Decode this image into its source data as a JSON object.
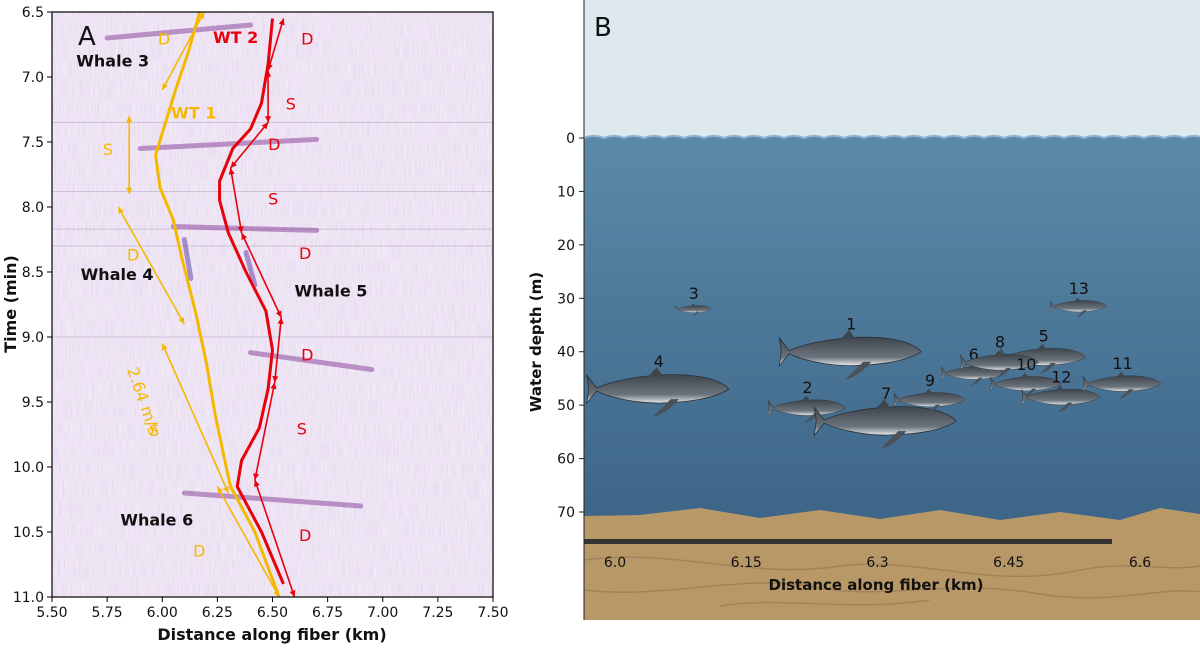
{
  "chart_data": [
    {
      "panel": "A",
      "type": "heatmap",
      "panel_label": "A",
      "xlabel": "Distance along fiber (km)",
      "ylabel": "Time (min)",
      "xlim": [
        5.5,
        7.5
      ],
      "ylim": [
        11.0,
        6.5
      ],
      "xticks": [
        "5.50",
        "5.75",
        "6.00",
        "6.25",
        "6.50",
        "6.75",
        "7.00",
        "7.25",
        "7.50"
      ],
      "yticks": [
        "6.5",
        "7.0",
        "7.5",
        "8.0",
        "8.5",
        "9.0",
        "9.5",
        "10.0",
        "10.5",
        "11.0"
      ],
      "colors": {
        "wt1": "#f5b800",
        "wt2": "#e8000b",
        "labels_black": "#111111"
      },
      "tracks": [
        {
          "label": "WT 1",
          "color": "#f5b800",
          "points": [
            [
              6.17,
              6.5
            ],
            [
              6.12,
              6.8
            ],
            [
              6.06,
              7.1
            ],
            [
              5.97,
              7.6
            ],
            [
              5.99,
              7.85
            ],
            [
              6.05,
              8.1
            ],
            [
              6.09,
              8.4
            ],
            [
              6.15,
              8.8
            ],
            [
              6.2,
              9.2
            ],
            [
              6.24,
              9.6
            ],
            [
              6.29,
              10.0
            ],
            [
              6.31,
              10.15
            ],
            [
              6.42,
              10.5
            ],
            [
              6.53,
              11.0
            ]
          ]
        },
        {
          "label": "WT 2",
          "color": "#e8000b",
          "points": [
            [
              6.5,
              6.55
            ],
            [
              6.48,
              6.9
            ],
            [
              6.45,
              7.2
            ],
            [
              6.4,
              7.4
            ],
            [
              6.32,
              7.55
            ],
            [
              6.26,
              7.8
            ],
            [
              6.26,
              7.95
            ],
            [
              6.3,
              8.2
            ],
            [
              6.38,
              8.5
            ],
            [
              6.47,
              8.8
            ],
            [
              6.5,
              9.1
            ],
            [
              6.48,
              9.4
            ],
            [
              6.44,
              9.7
            ],
            [
              6.36,
              9.95
            ],
            [
              6.34,
              10.15
            ],
            [
              6.45,
              10.5
            ],
            [
              6.55,
              10.9
            ]
          ]
        }
      ],
      "whales": [
        {
          "label": "Whale 3",
          "x": 5.61,
          "y": 6.92
        },
        {
          "label": "Whale 4",
          "x": 5.63,
          "y": 8.56
        },
        {
          "label": "Whale 5",
          "x": 6.6,
          "y": 8.69
        },
        {
          "label": "Whale 6",
          "x": 5.81,
          "y": 10.45
        }
      ],
      "track_labels": [
        {
          "label": "WT 1",
          "x": 6.04,
          "y": 7.32,
          "color": "#f5b800"
        },
        {
          "label": "WT 2",
          "x": 6.23,
          "y": 6.74,
          "color": "#e8000b"
        }
      ],
      "speed_label": {
        "text": "2.64 m/s",
        "x": 5.84,
        "y": 9.25,
        "color": "#f5b800"
      },
      "annotations": [
        {
          "text": "D",
          "x": 5.98,
          "y": 6.75,
          "color": "#f5b800"
        },
        {
          "text": "S",
          "x": 5.73,
          "y": 7.6,
          "color": "#f5b800"
        },
        {
          "text": "D",
          "x": 5.84,
          "y": 8.41,
          "color": "#f5b800"
        },
        {
          "text": "S",
          "x": 5.94,
          "y": 9.76,
          "color": "#f5b800"
        },
        {
          "text": "D",
          "x": 6.14,
          "y": 10.69,
          "color": "#f5b800"
        },
        {
          "text": "D",
          "x": 6.63,
          "y": 6.75,
          "color": "#e8000b"
        },
        {
          "text": "S",
          "x": 6.56,
          "y": 7.25,
          "color": "#e8000b"
        },
        {
          "text": "D",
          "x": 6.48,
          "y": 7.56,
          "color": "#e8000b"
        },
        {
          "text": "S",
          "x": 6.48,
          "y": 7.98,
          "color": "#e8000b"
        },
        {
          "text": "D",
          "x": 6.62,
          "y": 8.4,
          "color": "#e8000b"
        },
        {
          "text": "D",
          "x": 6.63,
          "y": 9.18,
          "color": "#e8000b"
        },
        {
          "text": "S",
          "x": 6.61,
          "y": 9.75,
          "color": "#e8000b"
        },
        {
          "text": "D",
          "x": 6.62,
          "y": 10.57,
          "color": "#e8000b"
        }
      ],
      "arrows": [
        {
          "x1": 6.19,
          "y1": 6.5,
          "x2": 6.0,
          "y2": 7.1,
          "color": "#f5b800"
        },
        {
          "x1": 5.85,
          "y1": 7.3,
          "x2": 5.85,
          "y2": 7.9,
          "color": "#f5b800"
        },
        {
          "x1": 5.8,
          "y1": 8.0,
          "x2": 6.1,
          "y2": 8.9,
          "color": "#f5b800"
        },
        {
          "x1": 6.0,
          "y1": 9.05,
          "x2": 6.3,
          "y2": 10.2,
          "color": "#f5b800"
        },
        {
          "x1": 6.25,
          "y1": 10.15,
          "x2": 6.53,
          "y2": 11.0,
          "color": "#f5b800"
        },
        {
          "x1": 6.55,
          "y1": 6.55,
          "x2": 6.48,
          "y2": 6.95,
          "color": "#e8000b"
        },
        {
          "x1": 6.48,
          "y1": 6.95,
          "x2": 6.48,
          "y2": 7.35,
          "color": "#e8000b"
        },
        {
          "x1": 6.48,
          "y1": 7.35,
          "x2": 6.31,
          "y2": 7.7,
          "color": "#e8000b"
        },
        {
          "x1": 6.31,
          "y1": 7.7,
          "x2": 6.36,
          "y2": 8.2,
          "color": "#e8000b"
        },
        {
          "x1": 6.36,
          "y1": 8.2,
          "x2": 6.54,
          "y2": 8.85,
          "color": "#e8000b"
        },
        {
          "x1": 6.54,
          "y1": 8.85,
          "x2": 6.51,
          "y2": 9.35,
          "color": "#e8000b"
        },
        {
          "x1": 6.51,
          "y1": 9.35,
          "x2": 6.42,
          "y2": 10.1,
          "color": "#e8000b"
        },
        {
          "x1": 6.42,
          "y1": 10.1,
          "x2": 6.6,
          "y2": 11.0,
          "color": "#e8000b"
        }
      ],
      "call_streaks": [
        {
          "x1": 5.75,
          "y1": 6.7,
          "x2": 6.4,
          "y2": 6.6,
          "color": "#7a2a8c"
        },
        {
          "x1": 5.9,
          "y1": 7.55,
          "x2": 6.7,
          "y2": 7.48,
          "color": "#7a2a8c"
        },
        {
          "x1": 6.05,
          "y1": 8.15,
          "x2": 6.7,
          "y2": 8.18,
          "color": "#7a2a8c"
        },
        {
          "x1": 6.1,
          "y1": 8.25,
          "x2": 6.13,
          "y2": 8.55,
          "color": "#4a2a9c"
        },
        {
          "x1": 6.38,
          "y1": 8.35,
          "x2": 6.42,
          "y2": 8.6,
          "color": "#4a2a9c"
        },
        {
          "x1": 6.4,
          "y1": 9.12,
          "x2": 6.95,
          "y2": 9.25,
          "color": "#7a2a8c"
        },
        {
          "x1": 6.1,
          "y1": 10.2,
          "x2": 6.9,
          "y2": 10.3,
          "color": "#7a2a8c"
        }
      ]
    },
    {
      "panel": "B",
      "type": "scatter",
      "panel_label": "B",
      "xlabel": "Distance along fiber (km)",
      "ylabel": "Water depth (m)",
      "xticks": [
        "6.0",
        "6.15",
        "6.3",
        "6.45",
        "6.6"
      ],
      "yticks": [
        "0",
        "10",
        "20",
        "30",
        "40",
        "50",
        "60",
        "70"
      ],
      "xlim": [
        5.95,
        6.67
      ],
      "ylim": [
        0,
        70
      ],
      "colors": {
        "sky": "#dde8ef",
        "water_top": "#5b8aa8",
        "water_bottom": "#3c6487",
        "seabed": "#b99868",
        "whale": "#5a6068",
        "fiber": "#333333"
      },
      "whales": [
        {
          "label": "1",
          "x": 6.27,
          "y": 40,
          "size": 1.0
        },
        {
          "label": "2",
          "x": 6.22,
          "y": 50.5,
          "size": 0.55
        },
        {
          "label": "3",
          "x": 6.09,
          "y": 32,
          "size": 0.25
        },
        {
          "label": "4",
          "x": 6.05,
          "y": 47,
          "size": 1.0
        },
        {
          "label": "5",
          "x": 6.49,
          "y": 41,
          "size": 0.6
        },
        {
          "label": "6",
          "x": 6.41,
          "y": 44,
          "size": 0.45
        },
        {
          "label": "7",
          "x": 6.31,
          "y": 53,
          "size": 1.0
        },
        {
          "label": "8",
          "x": 6.44,
          "y": 42,
          "size": 0.55
        },
        {
          "label": "9",
          "x": 6.36,
          "y": 49,
          "size": 0.5
        },
        {
          "label": "10",
          "x": 6.47,
          "y": 46,
          "size": 0.5
        },
        {
          "label": "11",
          "x": 6.58,
          "y": 46,
          "size": 0.55
        },
        {
          "label": "12",
          "x": 6.51,
          "y": 48.5,
          "size": 0.55
        },
        {
          "label": "13",
          "x": 6.53,
          "y": 31.5,
          "size": 0.4
        }
      ]
    }
  ]
}
